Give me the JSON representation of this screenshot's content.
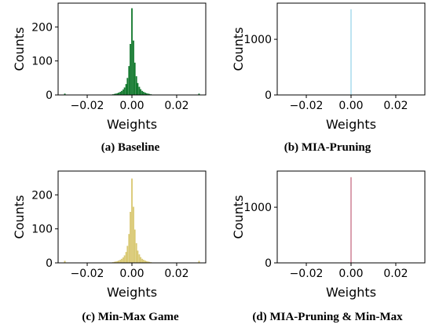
{
  "chart_data": [
    {
      "type": "bar",
      "caption": "(a) Baseline",
      "xlabel": "Weights",
      "ylabel": "Counts",
      "xlim": [
        -0.033,
        0.033
      ],
      "ylim": [
        0,
        270
      ],
      "xticks": [
        -0.02,
        0.0,
        0.02
      ],
      "xtick_labels": [
        "−0.02",
        "0.00",
        "0.02"
      ],
      "yticks": [
        0,
        100,
        200
      ],
      "ytick_labels": [
        "0",
        "100",
        "200"
      ],
      "color": "#157a30",
      "bin_width": 0.00065,
      "x": [
        -0.0085,
        -0.0078,
        -0.0072,
        -0.0065,
        -0.0059,
        -0.0052,
        -0.0046,
        -0.0039,
        -0.0033,
        -0.0026,
        -0.002,
        -0.0013,
        -0.0007,
        0.0,
        0.0007,
        0.0013,
        0.002,
        0.0026,
        0.0033,
        0.0039,
        0.0046,
        0.0052,
        0.0059,
        0.0065,
        0.0072,
        0.0078,
        0.0085,
        -0.03,
        0.03
      ],
      "values": [
        2,
        3,
        4,
        5,
        7,
        9,
        12,
        16,
        22,
        32,
        50,
        85,
        150,
        255,
        160,
        95,
        55,
        35,
        24,
        17,
        12,
        9,
        7,
        5,
        4,
        3,
        2,
        4,
        4
      ]
    },
    {
      "type": "bar",
      "caption": "(b) MIA-Pruning",
      "xlabel": "Weights",
      "ylabel": "Counts",
      "xlim": [
        -0.033,
        0.033
      ],
      "ylim": [
        0,
        1650
      ],
      "xticks": [
        -0.02,
        0.0,
        0.02
      ],
      "xtick_labels": [
        "−0.02",
        "0.00",
        "0.02"
      ],
      "yticks": [
        0,
        1000
      ],
      "ytick_labels": [
        "0",
        "1000"
      ],
      "color": "#7ec8e3",
      "bin_width": 0.0003,
      "x": [
        0.0
      ],
      "values": [
        1540
      ]
    },
    {
      "type": "bar",
      "caption": "(c) Min-Max Game",
      "xlabel": "Weights",
      "ylabel": "Counts",
      "xlim": [
        -0.033,
        0.033
      ],
      "ylim": [
        0,
        270
      ],
      "xticks": [
        -0.02,
        0.0,
        0.02
      ],
      "xtick_labels": [
        "−0.02",
        "0.00",
        "0.02"
      ],
      "yticks": [
        0,
        100,
        200
      ],
      "ytick_labels": [
        "0",
        "100",
        "200"
      ],
      "color": "#d9c974",
      "bin_width": 0.00065,
      "x": [
        -0.0085,
        -0.0078,
        -0.0072,
        -0.0065,
        -0.0059,
        -0.0052,
        -0.0046,
        -0.0039,
        -0.0033,
        -0.0026,
        -0.002,
        -0.0013,
        -0.0007,
        0.0,
        0.0007,
        0.0013,
        0.002,
        0.0026,
        0.0033,
        0.0039,
        0.0046,
        0.0052,
        0.0059,
        0.0065,
        0.0072,
        0.0078,
        0.0085,
        -0.03,
        0.03
      ],
      "values": [
        2,
        3,
        4,
        5,
        7,
        9,
        12,
        16,
        22,
        32,
        50,
        85,
        150,
        248,
        165,
        98,
        58,
        36,
        25,
        17,
        12,
        9,
        7,
        5,
        4,
        3,
        2,
        6,
        6
      ]
    },
    {
      "type": "bar",
      "caption": "(d) MIA-Pruning & Min-Max",
      "xlabel": "Weights",
      "ylabel": "Counts",
      "xlim": [
        -0.033,
        0.033
      ],
      "ylim": [
        0,
        1650
      ],
      "xticks": [
        -0.02,
        0.0,
        0.02
      ],
      "xtick_labels": [
        "−0.02",
        "0.00",
        "0.02"
      ],
      "yticks": [
        0,
        1000
      ],
      "ytick_labels": [
        "0",
        "1000"
      ],
      "color": "#b5405f",
      "bin_width": 0.0003,
      "x": [
        0.0,
        -0.0012,
        0.0012,
        -0.0025,
        0.0025
      ],
      "values": [
        1540,
        8,
        8,
        4,
        4
      ]
    }
  ]
}
